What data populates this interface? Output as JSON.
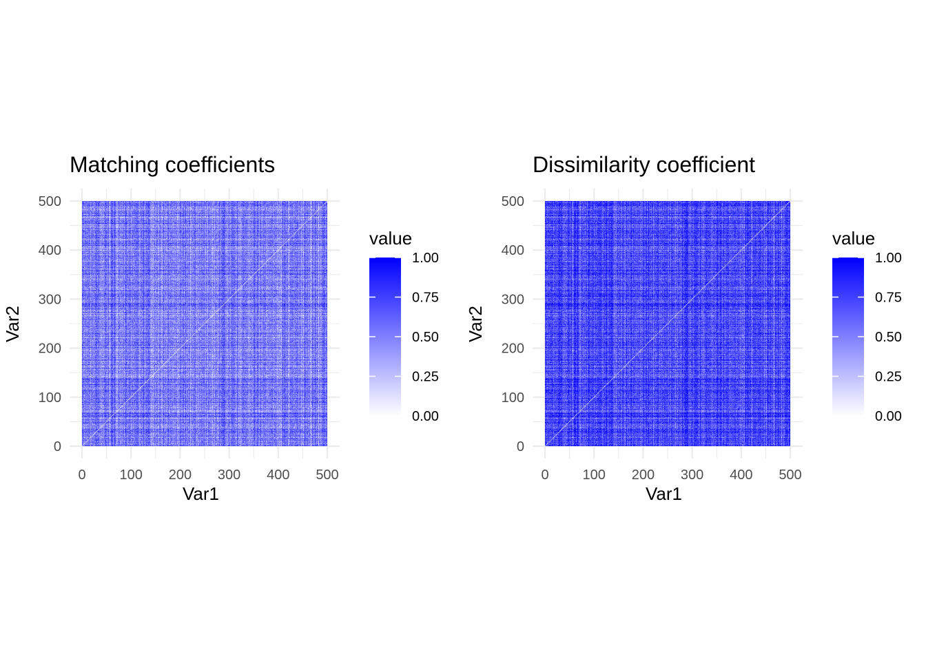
{
  "chart_data": [
    {
      "type": "heatmap",
      "title": "Matching coefficients",
      "xlabel": "Var1",
      "ylabel": "Var2",
      "xlim": [
        0,
        500
      ],
      "ylim": [
        0,
        500
      ],
      "n": 500,
      "x_ticks": [
        "0",
        "100",
        "200",
        "300",
        "400",
        "500"
      ],
      "y_ticks": [
        "0",
        "100",
        "200",
        "300",
        "400",
        "500"
      ],
      "legend": {
        "title": "value",
        "ticks": [
          "0.00",
          "0.25",
          "0.50",
          "0.75",
          "1.00"
        ],
        "low_color": "#ffffff",
        "high_color": "#0000ff",
        "placement": "right"
      },
      "value_mean": 0.52,
      "diagonal_value": 0
    },
    {
      "type": "heatmap",
      "title": "Dissimilarity coefficient",
      "xlabel": "Var1",
      "ylabel": "Var2",
      "xlim": [
        0,
        500
      ],
      "ylim": [
        0,
        500
      ],
      "n": 500,
      "x_ticks": [
        "0",
        "100",
        "200",
        "300",
        "400",
        "500"
      ],
      "y_ticks": [
        "0",
        "100",
        "200",
        "300",
        "400",
        "500"
      ],
      "legend": {
        "title": "value",
        "ticks": [
          "0.00",
          "0.25",
          "0.50",
          "0.75",
          "1.00"
        ],
        "low_color": "#ffffff",
        "high_color": "#0000ff",
        "placement": "right"
      },
      "value_mean": 0.72,
      "diagonal_value": 0
    }
  ]
}
